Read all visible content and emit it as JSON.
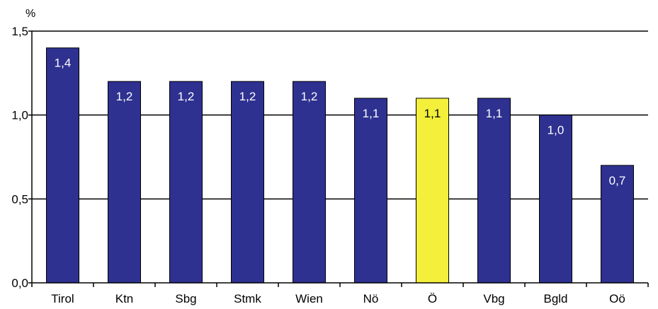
{
  "chart_data": {
    "type": "bar",
    "title": "",
    "xlabel": "",
    "ylabel": "%",
    "ylim": [
      0,
      1.5
    ],
    "grid": true,
    "legend": "none",
    "categories": [
      "Tirol",
      "Ktn",
      "Sbg",
      "Stmk",
      "Wien",
      "Nö",
      "Ö",
      "Vbg",
      "Bgld",
      "Oö"
    ],
    "values": [
      1.4,
      1.2,
      1.2,
      1.2,
      1.2,
      1.1,
      1.1,
      1.1,
      1.0,
      0.7
    ],
    "value_labels": [
      "1,4",
      "1,2",
      "1,2",
      "1,2",
      "1,2",
      "1,1",
      "1,1",
      "1,1",
      "1,0",
      "0,7"
    ],
    "highlight_index": 6,
    "y_ticks": [
      {
        "value": 0,
        "label": "0,0"
      },
      {
        "value": 0.5,
        "label": "0,5"
      },
      {
        "value": 1.0,
        "label": "1,0"
      },
      {
        "value": 1.5,
        "label": "1,5"
      }
    ],
    "colors": {
      "bar": "#2e3190",
      "highlight": "#f3ef3b",
      "bar_label_default": "#ffffff",
      "bar_label_highlight": "#000000",
      "grid": "#000000"
    }
  }
}
